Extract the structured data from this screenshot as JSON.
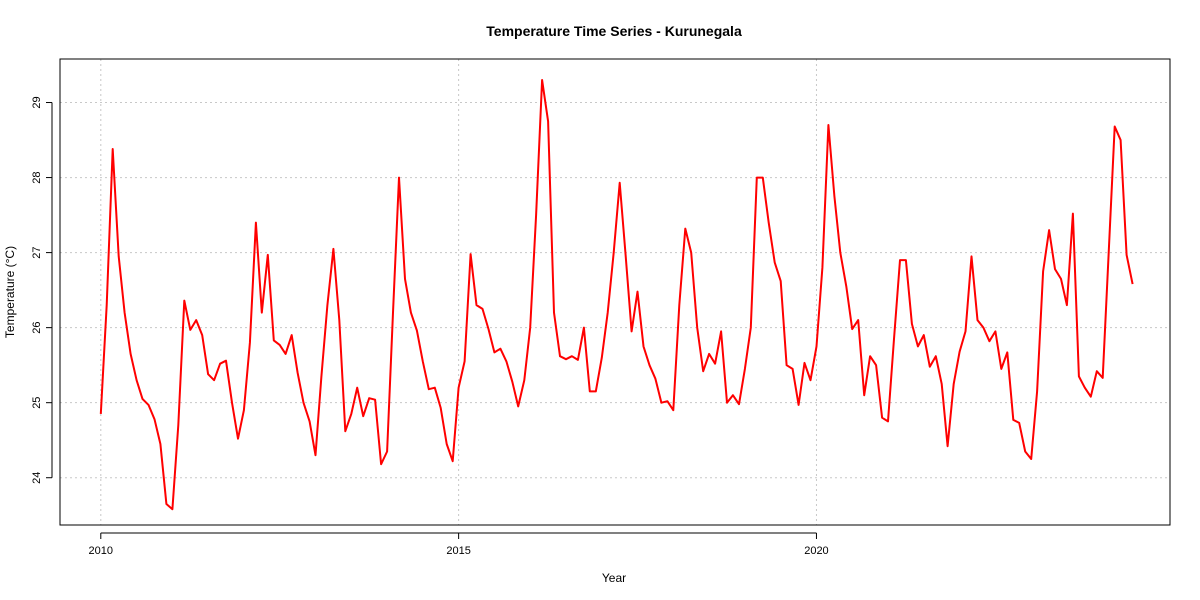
{
  "chart_data": {
    "type": "line",
    "title": "Temperature Time Series - Kurunegala",
    "xlabel": "Year",
    "ylabel": "Temperature (°C)",
    "xlim": [
      2009.43,
      2024.94
    ],
    "ylim": [
      23.37,
      29.58
    ],
    "x_ticks": [
      2010,
      2015,
      2020
    ],
    "y_ticks": [
      24,
      25,
      26,
      27,
      28,
      29
    ],
    "grid": true,
    "line_color": "#ff0000",
    "series": [
      {
        "x": [
          2010.0,
          2010.083,
          2010.167,
          2010.25,
          2010.333,
          2010.417,
          2010.5,
          2010.583,
          2010.667,
          2010.75,
          2010.833,
          2010.917,
          2011.0,
          2011.083,
          2011.167,
          2011.25,
          2011.333,
          2011.417,
          2011.5,
          2011.583,
          2011.667,
          2011.75,
          2011.833,
          2011.917,
          2012.0,
          2012.083,
          2012.167,
          2012.25,
          2012.333,
          2012.417,
          2012.5,
          2012.583,
          2012.667,
          2012.75,
          2012.833,
          2012.917,
          2013.0,
          2013.083,
          2013.167,
          2013.25,
          2013.333,
          2013.417,
          2013.5,
          2013.583,
          2013.667,
          2013.75,
          2013.833,
          2013.917,
          2014.0,
          2014.083,
          2014.167,
          2014.25,
          2014.333,
          2014.417,
          2014.5,
          2014.583,
          2014.667,
          2014.75,
          2014.833,
          2014.917,
          2015.0,
          2015.083,
          2015.167,
          2015.25,
          2015.333,
          2015.417,
          2015.5,
          2015.583,
          2015.667,
          2015.75,
          2015.833,
          2015.917,
          2016.0,
          2016.083,
          2016.167,
          2016.25,
          2016.333,
          2016.417,
          2016.5,
          2016.583,
          2016.667,
          2016.75,
          2016.833,
          2016.917,
          2017.0,
          2017.083,
          2017.167,
          2017.25,
          2017.333,
          2017.417,
          2017.5,
          2017.583,
          2017.667,
          2017.75,
          2017.833,
          2017.917,
          2018.0,
          2018.083,
          2018.167,
          2018.25,
          2018.333,
          2018.417,
          2018.5,
          2018.583,
          2018.667,
          2018.75,
          2018.833,
          2018.917,
          2019.0,
          2019.083,
          2019.167,
          2019.25,
          2019.333,
          2019.417,
          2019.5,
          2019.583,
          2019.667,
          2019.75,
          2019.833,
          2019.917,
          2020.0,
          2020.083,
          2020.167,
          2020.25,
          2020.333,
          2020.417,
          2020.5,
          2020.583,
          2020.667,
          2020.75,
          2020.833,
          2020.917,
          2021.0,
          2021.083,
          2021.167,
          2021.25,
          2021.333,
          2021.417,
          2021.5,
          2021.583,
          2021.667,
          2021.75,
          2021.833,
          2021.917,
          2022.0,
          2022.083,
          2022.167,
          2022.25,
          2022.333,
          2022.417,
          2022.5,
          2022.583,
          2022.667,
          2022.75,
          2022.833,
          2022.917,
          2023.0,
          2023.083,
          2023.167,
          2023.25,
          2023.333,
          2023.417,
          2023.5,
          2023.583,
          2023.667,
          2023.75,
          2023.833,
          2023.917,
          2024.0,
          2024.083,
          2024.167,
          2024.25,
          2024.333,
          2024.417
        ],
        "values": [
          24.85,
          26.3,
          28.38,
          26.95,
          26.2,
          25.65,
          25.3,
          25.05,
          24.97,
          24.78,
          24.45,
          23.65,
          23.58,
          24.7,
          26.36,
          25.97,
          26.1,
          25.9,
          25.38,
          25.3,
          25.52,
          25.56,
          25.0,
          24.52,
          24.9,
          25.8,
          27.4,
          26.2,
          26.97,
          25.83,
          25.77,
          25.65,
          25.9,
          25.4,
          25.0,
          24.75,
          24.3,
          25.35,
          26.3,
          27.05,
          26.1,
          24.62,
          24.85,
          25.2,
          24.82,
          25.06,
          25.04,
          24.18,
          24.35,
          26.2,
          28.0,
          26.65,
          26.2,
          25.96,
          25.55,
          25.18,
          25.2,
          24.93,
          24.45,
          24.22,
          25.2,
          25.55,
          26.98,
          26.3,
          26.25,
          25.98,
          25.67,
          25.72,
          25.55,
          25.28,
          24.95,
          25.3,
          26.0,
          27.5,
          29.3,
          28.75,
          26.2,
          25.62,
          25.58,
          25.62,
          25.57,
          26.0,
          25.15,
          25.15,
          25.6,
          26.2,
          27.0,
          27.93,
          26.97,
          25.95,
          26.48,
          25.75,
          25.5,
          25.32,
          25.0,
          25.02,
          24.9,
          26.3,
          27.32,
          27.0,
          26.0,
          25.42,
          25.65,
          25.52,
          25.95,
          25.0,
          25.1,
          24.98,
          25.45,
          26.0,
          28.0,
          28.0,
          27.4,
          26.87,
          26.62,
          25.5,
          25.45,
          24.97,
          25.53,
          25.3,
          25.75,
          26.8,
          28.7,
          27.75,
          27.0,
          26.55,
          25.98,
          26.1,
          25.1,
          25.62,
          25.5,
          24.8,
          24.75,
          25.85,
          26.9,
          26.9,
          26.05,
          25.75,
          25.9,
          25.48,
          25.62,
          25.25,
          24.42,
          25.25,
          25.68,
          25.95,
          26.95,
          26.1,
          26.0,
          25.82,
          25.95,
          25.45,
          25.67,
          24.77,
          24.73,
          24.35,
          24.25,
          25.15,
          26.75,
          27.3,
          26.78,
          26.65,
          26.3,
          27.52,
          25.35,
          25.2,
          25.08,
          25.42,
          25.33,
          27.0,
          28.68,
          28.5,
          26.97,
          26.58
        ]
      }
    ]
  }
}
